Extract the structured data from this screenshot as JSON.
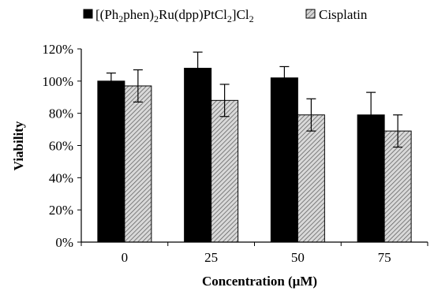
{
  "chart_data": {
    "type": "bar",
    "categories": [
      "0",
      "25",
      "50",
      "75"
    ],
    "series": [
      {
        "name": "[(Ph2phen)2Ru(dpp)PtCl2]Cl2",
        "name_parts": [
          "[(Ph",
          "2",
          "phen)",
          "2",
          "Ru(dpp)PtCl",
          "2",
          "]Cl",
          "2"
        ],
        "values": [
          100,
          108,
          102,
          79
        ],
        "errors": [
          5,
          10,
          7,
          14
        ],
        "fill": "#000000",
        "pattern": "solid"
      },
      {
        "name": "Cisplatin",
        "values": [
          97,
          88,
          79,
          69
        ],
        "errors": [
          10,
          10,
          10,
          10
        ],
        "fill": "#bdbdbd",
        "pattern": "hatched"
      }
    ],
    "xlabel": "Concentration (μM)",
    "ylabel": "Viability",
    "ylim": [
      0,
      120
    ],
    "yticks": [
      0,
      20,
      40,
      60,
      80,
      100,
      120
    ],
    "ytick_suffix": "%",
    "grid": false,
    "legend_position": "top"
  }
}
